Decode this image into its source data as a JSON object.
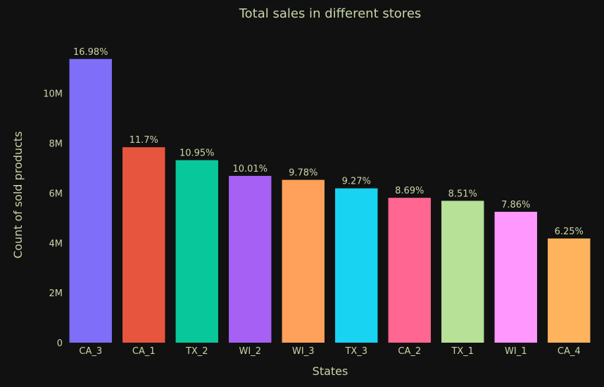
{
  "chart_data": {
    "type": "bar",
    "title": "Total sales in different stores",
    "xlabel": "States",
    "ylabel": "Count of sold products",
    "categories": [
      "CA_3",
      "CA_1",
      "TX_2",
      "WI_2",
      "WI_3",
      "TX_3",
      "CA_2",
      "TX_1",
      "WI_1",
      "CA_4"
    ],
    "values": [
      11380000,
      7840000,
      7320000,
      6690000,
      6530000,
      6190000,
      5810000,
      5690000,
      5250000,
      4180000
    ],
    "labels": [
      "16.98%",
      "11.7%",
      "10.95%",
      "10.01%",
      "9.78%",
      "9.27%",
      "8.69%",
      "8.51%",
      "7.86%",
      "6.25%"
    ],
    "colors": [
      "#7f6ef7",
      "#e8553e",
      "#08c89b",
      "#a660f4",
      "#ffa15a",
      "#19d3f3",
      "#ff6692",
      "#b6e197",
      "#ff97ff",
      "#feb35c"
    ],
    "ylim": [
      0,
      11600000
    ],
    "yticks": [
      0,
      2000000,
      4000000,
      6000000,
      8000000,
      10000000
    ],
    "ytick_labels": [
      "0",
      "2M",
      "4M",
      "6M",
      "8M",
      "10M"
    ],
    "grid": false,
    "legend": "none"
  }
}
